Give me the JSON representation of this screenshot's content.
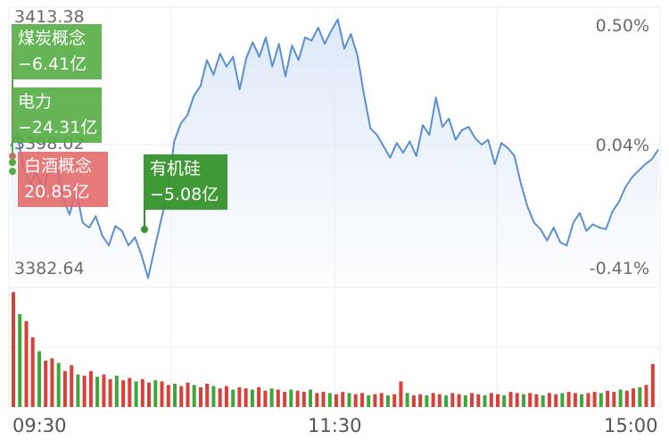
{
  "chart_data": {
    "type": "line",
    "title": "",
    "y_left_labels": [
      "3413.38",
      "3398.02",
      "3382.64"
    ],
    "y_right_labels": [
      "0.50%",
      "0.04%",
      "-0.41%"
    ],
    "x_labels": [
      "09:30",
      "11:30",
      "15:00"
    ],
    "grid": true,
    "ylim": [
      3382.64,
      3413.38
    ],
    "series": [
      {
        "values": [
          3397.8,
          3399.4,
          3395.0,
          3393.2,
          3394.6,
          3392.0,
          3396.2,
          3395.4,
          3391.4,
          3389.4,
          3392.4,
          3388.4,
          3387.8,
          3389.2,
          3386.8,
          3385.6,
          3388.0,
          3387.4,
          3385.6,
          3386.6,
          3384.4,
          3381.6,
          3385.2,
          3388.8,
          3392.0,
          3398.4,
          3400.6,
          3401.6,
          3404.0,
          3405.2,
          3408.4,
          3406.6,
          3409.2,
          3407.6,
          3408.8,
          3404.8,
          3408.6,
          3410.6,
          3408.8,
          3411.2,
          3407.6,
          3410.4,
          3406.4,
          3410.2,
          3408.4,
          3411.2,
          3410.8,
          3412.4,
          3410.4,
          3412.0,
          3413.4,
          3409.8,
          3411.6,
          3409.0,
          3404.2,
          3400.0,
          3399.2,
          3397.8,
          3396.4,
          3398.2,
          3397.0,
          3398.4,
          3396.6,
          3400.4,
          3399.2,
          3403.8,
          3400.2,
          3401.2,
          3398.6,
          3399.8,
          3400.2,
          3398.8,
          3398.0,
          3398.6,
          3395.6,
          3398.2,
          3397.6,
          3396.6,
          3393.2,
          3390.4,
          3388.4,
          3387.6,
          3386.2,
          3387.8,
          3386.0,
          3385.6,
          3388.4,
          3389.6,
          3387.4,
          3388.2,
          3387.8,
          3387.6,
          3389.8,
          3391.0,
          3392.8,
          3394.0,
          3394.8,
          3395.6,
          3396.2,
          3397.4
        ]
      }
    ],
    "volume": [
      0.99,
      0.8,
      0.74,
      0.6,
      0.48,
      0.4,
      0.42,
      0.38,
      0.31,
      0.36,
      0.28,
      0.27,
      0.31,
      0.26,
      0.28,
      0.24,
      0.27,
      0.23,
      0.25,
      0.22,
      0.24,
      0.21,
      0.23,
      0.22,
      0.19,
      0.2,
      0.18,
      0.21,
      0.19,
      0.17,
      0.2,
      0.18,
      0.16,
      0.18,
      0.15,
      0.17,
      0.16,
      0.15,
      0.17,
      0.14,
      0.16,
      0.15,
      0.13,
      0.15,
      0.14,
      0.13,
      0.15,
      0.12,
      0.13,
      0.12,
      0.11,
      0.13,
      0.12,
      0.11,
      0.12,
      0.1,
      0.11,
      0.12,
      0.1,
      0.11,
      0.22,
      0.12,
      0.1,
      0.11,
      0.1,
      0.12,
      0.11,
      0.1,
      0.12,
      0.11,
      0.1,
      0.12,
      0.11,
      0.1,
      0.12,
      0.11,
      0.1,
      0.13,
      0.12,
      0.11,
      0.12,
      0.11,
      0.1,
      0.12,
      0.11,
      0.12,
      0.13,
      0.12,
      0.11,
      0.12,
      0.13,
      0.12,
      0.14,
      0.13,
      0.15,
      0.14,
      0.16,
      0.17,
      0.19,
      0.37
    ],
    "annotations": [
      {
        "name": "煤炭概念",
        "value": "−6.41亿",
        "color": "#54ac44"
      },
      {
        "name": "电力",
        "value": "−24.31亿",
        "color": "#54ac44"
      },
      {
        "name": "白酒概念",
        "value": "20.85亿",
        "color": "#e26868"
      },
      {
        "name": "有机硅",
        "value": "−5.08亿",
        "color": "#36942c"
      }
    ]
  },
  "colors": {
    "line": "#5b8fd0",
    "fill_top": "#dce8f8",
    "up_bar": "#d9403a",
    "down_bar": "#3fa63a",
    "grid": "#ececec"
  }
}
